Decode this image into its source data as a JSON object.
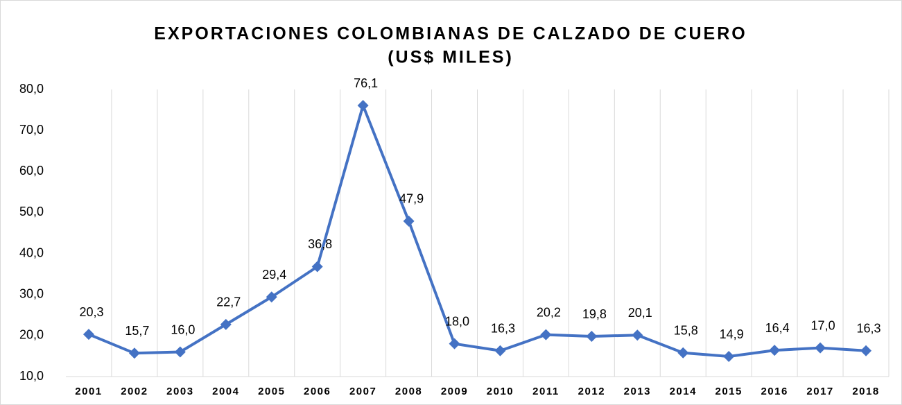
{
  "chart_data": {
    "type": "line",
    "title": [
      "EXPORTACIONES COLOMBIANAS DE CALZADO DE CUERO",
      "(US$ MILES)"
    ],
    "categories": [
      "2001",
      "2002",
      "2003",
      "2004",
      "2005",
      "2006",
      "2007",
      "2008",
      "2009",
      "2010",
      "2011",
      "2012",
      "2013",
      "2014",
      "2015",
      "2016",
      "2017",
      "2018"
    ],
    "values": [
      20.3,
      15.7,
      16.0,
      22.7,
      29.4,
      36.8,
      76.1,
      47.9,
      18.0,
      16.3,
      20.2,
      19.8,
      20.1,
      15.8,
      14.9,
      16.4,
      17.0,
      16.3
    ],
    "value_labels": [
      "20,3",
      "15,7",
      "16,0",
      "22,7",
      "29,4",
      "36,8",
      "76,1",
      "47,9",
      "18,0",
      "16,3",
      "20,2",
      "19,8",
      "20,1",
      "15,8",
      "14,9",
      "16,4",
      "17,0",
      "16,3"
    ],
    "color": "#4472c4",
    "ylim": [
      10,
      80
    ],
    "yticks": [
      {
        "value": 10,
        "label": "10,0"
      },
      {
        "value": 20,
        "label": "20,0"
      },
      {
        "value": 30,
        "label": "30,0"
      },
      {
        "value": 40,
        "label": "40,0"
      },
      {
        "value": 50,
        "label": "50,0"
      },
      {
        "value": 60,
        "label": "60,0"
      },
      {
        "value": 70,
        "label": "70,0"
      },
      {
        "value": 80,
        "label": "80,0"
      }
    ],
    "grid": true
  }
}
